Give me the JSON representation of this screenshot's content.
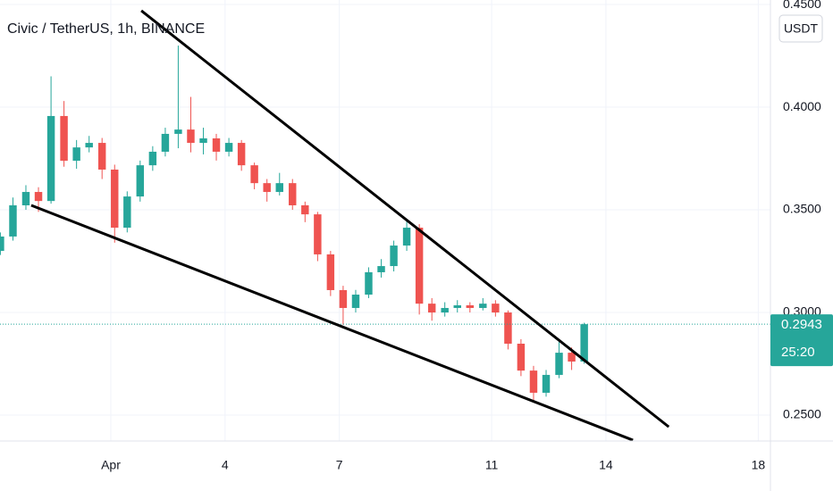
{
  "chart_data": {
    "type": "candlestick",
    "title": "Civic / TetherUS, 1h, BINANCE",
    "unit": "USDT",
    "countdown": "25:20",
    "up_color": "#26a69a",
    "down_color": "#ef5350",
    "x": [
      -1.9,
      -1.57,
      -1.23,
      -0.9,
      -0.57,
      -0.23,
      0.1,
      0.43,
      0.77,
      1.1,
      1.43,
      1.77,
      2.1,
      2.43,
      2.77,
      3.1,
      3.43,
      3.77,
      4.1,
      4.43,
      4.77,
      5.1,
      5.43,
      5.77,
      6.1,
      6.43,
      6.77,
      7.1,
      7.43,
      7.77,
      8.1,
      8.43,
      8.77,
      9.1,
      9.43,
      9.77,
      10.1,
      10.43,
      10.77,
      11.1,
      11.43,
      11.77,
      12.1,
      12.43,
      12.77,
      13.1,
      13.43
    ],
    "open": [
      0.33,
      0.337,
      0.3522,
      0.3587,
      0.3543,
      0.3957,
      0.3739,
      0.3804,
      0.3826,
      0.3696,
      0.3413,
      0.3565,
      0.3717,
      0.3783,
      0.387,
      0.3891,
      0.3826,
      0.3848,
      0.3783,
      0.3826,
      0.3717,
      0.363,
      0.3587,
      0.363,
      0.3522,
      0.3478,
      0.3283,
      0.3109,
      0.3022,
      0.3087,
      0.3196,
      0.3226,
      0.3326,
      0.3413,
      0.3043,
      0.3,
      0.3022,
      0.3035,
      0.3022,
      0.3043,
      0.3,
      0.2848,
      0.2717,
      0.2609,
      0.2696,
      0.2804,
      0.2761
    ],
    "high": [
      0.339,
      0.356,
      0.362,
      0.361,
      0.415,
      0.403,
      0.384,
      0.386,
      0.385,
      0.372,
      0.359,
      0.374,
      0.381,
      0.39,
      0.43,
      0.405,
      0.39,
      0.387,
      0.385,
      0.384,
      0.373,
      0.365,
      0.368,
      0.365,
      0.354,
      0.349,
      0.33,
      0.313,
      0.311,
      0.322,
      0.326,
      0.335,
      0.345,
      0.343,
      0.307,
      0.305,
      0.306,
      0.305,
      0.307,
      0.306,
      0.301,
      0.287,
      0.274,
      0.272,
      0.287,
      0.283,
      0.295
    ],
    "low": [
      0.328,
      0.335,
      0.35,
      0.349,
      0.353,
      0.371,
      0.37,
      0.378,
      0.365,
      0.334,
      0.339,
      0.354,
      0.369,
      0.376,
      0.38,
      0.378,
      0.377,
      0.374,
      0.376,
      0.369,
      0.36,
      0.354,
      0.357,
      0.35,
      0.344,
      0.325,
      0.308,
      0.294,
      0.3,
      0.307,
      0.317,
      0.32,
      0.33,
      0.299,
      0.296,
      0.298,
      0.3,
      0.3,
      0.301,
      0.298,
      0.282,
      0.269,
      0.2565,
      0.259,
      0.268,
      0.272,
      0.275
    ],
    "close": [
      0.337,
      0.3522,
      0.3587,
      0.3543,
      0.3957,
      0.3739,
      0.3804,
      0.3826,
      0.3696,
      0.3413,
      0.3565,
      0.3717,
      0.3783,
      0.387,
      0.3891,
      0.3826,
      0.3848,
      0.3783,
      0.3826,
      0.3717,
      0.363,
      0.3587,
      0.363,
      0.3522,
      0.3478,
      0.3283,
      0.3109,
      0.3022,
      0.3087,
      0.3196,
      0.3226,
      0.3326,
      0.3413,
      0.3043,
      0.3,
      0.3022,
      0.3035,
      0.3022,
      0.3043,
      0.3,
      0.2848,
      0.2717,
      0.2609,
      0.2696,
      0.2804,
      0.2761,
      0.2943
    ],
    "trendlines": [
      {
        "x": [
          1.8,
          15.65
        ],
        "y": [
          0.447,
          0.2443
        ],
        "color": "#000000"
      },
      {
        "x": [
          -1.09,
          14.71
        ],
        "y": [
          0.3522,
          0.2378
        ],
        "color": "#000000"
      }
    ],
    "xlim": [
      -1.91,
      18.32
    ],
    "ylim": [
      0.2374,
      0.4522
    ],
    "xticks": [
      {
        "value": 1,
        "label": "Apr"
      },
      4,
      7,
      11,
      14,
      18
    ],
    "yticks": [
      {
        "value": 0.25,
        "label": "0.2500"
      },
      {
        "value": 0.3,
        "label": "0.3000"
      },
      {
        "value": 0.35,
        "label": "0.3500"
      },
      {
        "value": 0.4,
        "label": "0.4000"
      },
      {
        "value": 0.45,
        "label": "0.4500"
      }
    ],
    "grid": true
  }
}
